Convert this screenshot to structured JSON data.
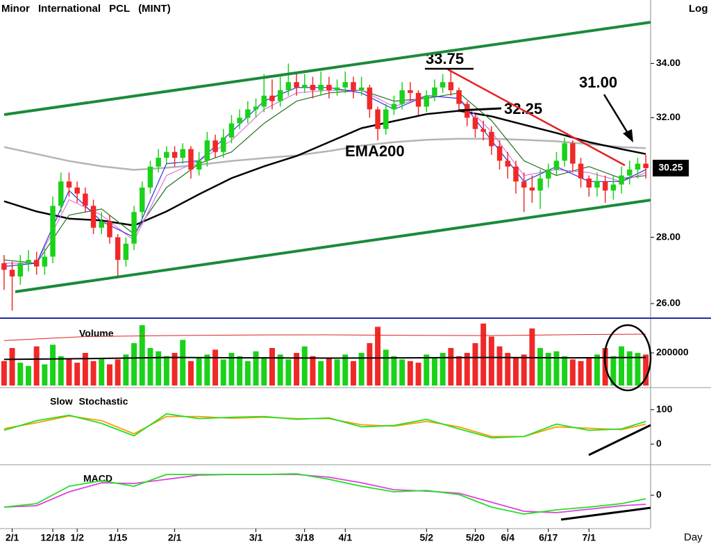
{
  "chart_data": [
    {
      "type": "candlestick",
      "title": "Minor International PCL (MINT)",
      "scale_label": "Log",
      "y_scale": "log",
      "ylim": [
        25.6,
        36.5
      ],
      "yticks": [
        {
          "value": 26,
          "label": "26.00"
        },
        {
          "value": 28,
          "label": "28.00"
        },
        {
          "value": 32,
          "label": "32.00"
        },
        {
          "value": 34,
          "label": "34.00"
        }
      ],
      "up_color": "#19d219",
      "down_color": "#f02828",
      "open": [
        27.2,
        27.0,
        26.8,
        27.2,
        27.3,
        27.1,
        27.4,
        29.0,
        29.8,
        29.6,
        29.4,
        29.0,
        28.3,
        28.5,
        28.0,
        27.3,
        27.8,
        28.8,
        29.6,
        30.3,
        30.6,
        30.8,
        30.6,
        30.9,
        30.2,
        30.5,
        31.2,
        30.8,
        31.3,
        31.8,
        32.0,
        32.3,
        32.4,
        32.8,
        32.6,
        33.0,
        33.3,
        33.1,
        33.2,
        33.0,
        33.2,
        33.0,
        33.1,
        33.3,
        33.0,
        33.1,
        32.3,
        31.6,
        32.3,
        32.5,
        33.0,
        32.9,
        32.4,
        32.8,
        33.1,
        33.3,
        33.0,
        32.5,
        32.0,
        31.6,
        31.5,
        31.0,
        30.5,
        30.3,
        29.8,
        29.6,
        29.5,
        29.9,
        30.2,
        30.5,
        31.1,
        30.4,
        29.9,
        29.6,
        29.8,
        29.5,
        29.7,
        30.0,
        30.2,
        30.4
      ],
      "high": [
        27.45,
        27.25,
        27.45,
        27.6,
        27.55,
        27.65,
        29.3,
        30.1,
        30.1,
        29.8,
        29.6,
        29.2,
        28.8,
        28.7,
        28.1,
        28.0,
        29.0,
        29.8,
        30.5,
        30.9,
        31.0,
        31.0,
        31.1,
        31.0,
        30.8,
        31.5,
        31.4,
        31.6,
        32.1,
        32.3,
        32.6,
        32.7,
        33.6,
        33.4,
        33.5,
        34.0,
        33.6,
        33.6,
        33.5,
        33.7,
        33.5,
        33.4,
        33.7,
        33.5,
        33.5,
        33.2,
        32.4,
        32.5,
        32.8,
        33.3,
        33.3,
        33.0,
        33.0,
        33.4,
        33.6,
        33.75,
        33.1,
        32.6,
        32.1,
        31.9,
        31.7,
        31.2,
        30.8,
        30.5,
        30.1,
        30.0,
        30.2,
        30.4,
        30.8,
        31.3,
        31.2,
        30.6,
        30.0,
        30.1,
        30.0,
        30.0,
        30.3,
        30.5,
        30.6,
        30.7
      ],
      "low": [
        26.4,
        25.8,
        26.55,
        26.95,
        26.85,
        26.85,
        27.2,
        28.8,
        29.3,
        29.1,
        28.8,
        28.1,
        28.1,
        27.8,
        26.8,
        27.1,
        27.6,
        28.6,
        29.4,
        30.1,
        30.4,
        30.3,
        30.4,
        29.9,
        30.0,
        30.3,
        30.6,
        30.6,
        31.1,
        31.6,
        31.8,
        32.0,
        32.2,
        32.3,
        32.4,
        32.8,
        32.8,
        32.9,
        32.7,
        32.8,
        32.7,
        32.8,
        32.9,
        32.7,
        32.8,
        32.0,
        31.2,
        31.4,
        32.1,
        32.3,
        32.6,
        32.1,
        32.2,
        32.6,
        32.9,
        32.8,
        32.2,
        31.7,
        31.3,
        31.2,
        30.7,
        30.2,
        29.9,
        29.4,
        28.8,
        29.1,
        28.9,
        29.6,
        30.0,
        30.3,
        30.1,
        29.6,
        29.3,
        29.3,
        29.1,
        29.2,
        29.4,
        29.7,
        29.9,
        29.9
      ],
      "close": [
        27.0,
        26.8,
        27.2,
        27.3,
        27.1,
        27.4,
        29.0,
        29.8,
        29.6,
        29.4,
        29.0,
        28.3,
        28.5,
        28.0,
        27.3,
        27.8,
        28.8,
        29.6,
        30.3,
        30.6,
        30.8,
        30.6,
        30.9,
        30.2,
        30.5,
        31.2,
        30.8,
        31.3,
        31.8,
        32.0,
        32.3,
        32.4,
        32.8,
        32.6,
        33.0,
        33.3,
        33.1,
        33.2,
        33.0,
        33.2,
        33.0,
        33.1,
        33.3,
        33.0,
        33.1,
        32.3,
        31.6,
        32.3,
        32.5,
        33.0,
        32.9,
        32.4,
        32.8,
        33.1,
        33.3,
        33.0,
        32.5,
        32.0,
        31.6,
        31.5,
        31.0,
        30.5,
        30.3,
        29.8,
        29.6,
        29.5,
        29.9,
        30.2,
        30.5,
        31.1,
        30.4,
        29.9,
        29.6,
        29.8,
        29.5,
        29.7,
        30.0,
        30.2,
        30.4,
        30.25
      ],
      "lines": [
        {
          "color": "#b4b4b4",
          "x": [
            0,
            4,
            8,
            12,
            16,
            20,
            24,
            28,
            32,
            36,
            40,
            44,
            48,
            52,
            56,
            60,
            64,
            68,
            72,
            76,
            79
          ],
          "values": [
            30.97,
            30.73,
            30.49,
            30.31,
            30.19,
            30.26,
            30.36,
            30.49,
            30.59,
            30.68,
            30.83,
            31.02,
            31.14,
            31.22,
            31.26,
            31.26,
            31.22,
            31.17,
            31.07,
            30.97,
            30.93
          ]
        },
        {
          "color": "#000000",
          "x": [
            0,
            4,
            8,
            12,
            16,
            20,
            24,
            28,
            32,
            36,
            40,
            44,
            48,
            52,
            56,
            60,
            64,
            68,
            72,
            76,
            79
          ],
          "values": [
            29.15,
            28.82,
            28.59,
            28.53,
            28.37,
            28.82,
            29.38,
            29.91,
            30.31,
            30.66,
            31.14,
            31.63,
            31.88,
            32.13,
            32.25,
            32.05,
            31.75,
            31.46,
            31.14,
            30.9,
            30.73
          ]
        },
        {
          "color": "#1f6e1f",
          "x": [
            0,
            4,
            8,
            12,
            16,
            20,
            24,
            28,
            32,
            36,
            40,
            44,
            48,
            52,
            56,
            60,
            64,
            68,
            72,
            76,
            79
          ],
          "values": [
            27.3,
            27.2,
            28.7,
            28.9,
            28.1,
            29.6,
            30.4,
            30.8,
            31.8,
            32.6,
            32.9,
            33.0,
            32.6,
            32.7,
            32.9,
            31.9,
            30.5,
            30.0,
            30.3,
            29.9,
            30.0
          ]
        },
        {
          "color": "#e070e0",
          "x": [
            0,
            4,
            8,
            12,
            16,
            20,
            24,
            28,
            32,
            36,
            40,
            44,
            48,
            52,
            56,
            60,
            64,
            68,
            72,
            76,
            79
          ],
          "values": [
            27.2,
            27.2,
            29.2,
            28.7,
            27.9,
            30.0,
            30.5,
            31.2,
            32.3,
            32.9,
            33.0,
            33.0,
            32.4,
            32.8,
            32.7,
            31.5,
            30.0,
            30.2,
            30.1,
            29.8,
            30.1
          ]
        },
        {
          "color": "#3030e0",
          "x": [
            0,
            4,
            8,
            12,
            16,
            20,
            24,
            28,
            32,
            36,
            40,
            44,
            48,
            52,
            56,
            60,
            64,
            68,
            72,
            76,
            79
          ],
          "values": [
            27.1,
            27.2,
            29.5,
            28.5,
            28.0,
            30.4,
            30.5,
            31.5,
            32.6,
            33.1,
            33.1,
            32.9,
            32.3,
            32.8,
            32.7,
            31.2,
            29.8,
            30.3,
            29.8,
            29.8,
            30.2
          ]
        }
      ],
      "annotations": [
        {
          "text": "33.75"
        },
        {
          "text": "32.25"
        },
        {
          "text": "31.00"
        },
        {
          "text": "EMA200"
        },
        {
          "text": "30.25"
        }
      ]
    },
    {
      "type": "bar",
      "title": "Volume",
      "ylim": [
        0,
        396000
      ],
      "yticks": [
        200000
      ],
      "up_color": "#19d219",
      "down_color": "#f02828",
      "values": [
        150000,
        230000,
        140000,
        120000,
        240000,
        130000,
        250000,
        180000,
        160000,
        140000,
        200000,
        150000,
        170000,
        130000,
        160000,
        190000,
        260000,
        370000,
        230000,
        210000,
        180000,
        200000,
        280000,
        150000,
        170000,
        190000,
        220000,
        160000,
        200000,
        180000,
        150000,
        210000,
        170000,
        230000,
        190000,
        160000,
        200000,
        240000,
        180000,
        150000,
        170000,
        160000,
        190000,
        150000,
        200000,
        260000,
        360000,
        220000,
        180000,
        160000,
        150000,
        140000,
        190000,
        170000,
        200000,
        230000,
        180000,
        200000,
        260000,
        380000,
        300000,
        240000,
        200000,
        170000,
        190000,
        350000,
        230000,
        200000,
        210000,
        180000,
        160000,
        150000,
        170000,
        190000,
        230000,
        180000,
        240000,
        210000,
        200000,
        190000
      ],
      "lines": [
        {
          "color": "#e02020",
          "x": [
            0,
            10,
            20,
            30,
            40,
            50,
            60,
            70,
            79
          ],
          "values": [
            276000,
            300000,
            306000,
            310000,
            311000,
            308000,
            306000,
            312000,
            315000
          ]
        },
        {
          "color": "#000000",
          "x": [
            0,
            10,
            20,
            30,
            40,
            50,
            60,
            70,
            79
          ],
          "values": [
            160000,
            165000,
            172000,
            170000,
            168000,
            170000,
            172000,
            170000,
            172000
          ]
        }
      ]
    },
    {
      "type": "line",
      "title": "Slow Stochastic",
      "ylim": [
        -56,
        156
      ],
      "yticks": [
        0,
        100
      ],
      "series": [
        {
          "color": "#ff9a00",
          "x": [
            0,
            4,
            8,
            12,
            16,
            20,
            24,
            28,
            32,
            36,
            40,
            44,
            48,
            52,
            56,
            60,
            64,
            68,
            72,
            76,
            79
          ],
          "values": [
            45,
            62,
            82,
            68,
            30,
            80,
            80,
            75,
            78,
            74,
            74,
            56,
            52,
            66,
            50,
            22,
            22,
            50,
            46,
            42,
            58
          ]
        },
        {
          "color": "#22e022",
          "x": [
            0,
            4,
            8,
            12,
            16,
            20,
            24,
            28,
            32,
            36,
            40,
            44,
            48,
            52,
            56,
            60,
            64,
            68,
            72,
            76,
            79
          ],
          "values": [
            40,
            68,
            84,
            60,
            24,
            88,
            74,
            78,
            80,
            72,
            76,
            50,
            54,
            72,
            44,
            18,
            22,
            58,
            40,
            44,
            66
          ]
        }
      ]
    },
    {
      "type": "line",
      "title": "MACD",
      "ylim": [
        -0.94,
        0.82
      ],
      "yticks": [
        0
      ],
      "x_label": "Day",
      "xlim": [
        -0.5,
        79.5
      ],
      "xticks": [
        {
          "value": 1,
          "label": "2/1"
        },
        {
          "value": 6,
          "label": "12/18"
        },
        {
          "value": 9,
          "label": "1/2"
        },
        {
          "value": 14,
          "label": "1/15"
        },
        {
          "value": 21,
          "label": "2/1"
        },
        {
          "value": 31,
          "label": "3/1"
        },
        {
          "value": 37,
          "label": "3/18"
        },
        {
          "value": 42,
          "label": "4/1"
        },
        {
          "value": 52,
          "label": "5/2"
        },
        {
          "value": 58,
          "label": "5/20"
        },
        {
          "value": 62,
          "label": "6/4"
        },
        {
          "value": 67,
          "label": "6/17"
        },
        {
          "value": 72,
          "label": "7/1"
        }
      ],
      "series": [
        {
          "color": "#e040e0",
          "x": [
            0,
            4,
            8,
            12,
            16,
            20,
            24,
            28,
            32,
            36,
            40,
            44,
            48,
            52,
            56,
            60,
            64,
            68,
            72,
            76,
            79
          ],
          "values": [
            -0.34,
            -0.3,
            0.1,
            0.36,
            0.34,
            0.46,
            0.58,
            0.6,
            0.6,
            0.6,
            0.52,
            0.36,
            0.16,
            0.12,
            0.06,
            -0.2,
            -0.46,
            -0.5,
            -0.4,
            -0.3,
            -0.26
          ]
        },
        {
          "color": "#22e022",
          "x": [
            0,
            4,
            8,
            12,
            16,
            20,
            24,
            28,
            32,
            36,
            40,
            44,
            48,
            52,
            56,
            60,
            64,
            68,
            72,
            76,
            79
          ],
          "values": [
            -0.34,
            -0.24,
            0.26,
            0.42,
            0.26,
            0.6,
            0.6,
            0.6,
            0.6,
            0.62,
            0.46,
            0.26,
            0.1,
            0.14,
            0.02,
            -0.34,
            -0.54,
            -0.42,
            -0.34,
            -0.24,
            -0.1
          ]
        }
      ]
    }
  ]
}
